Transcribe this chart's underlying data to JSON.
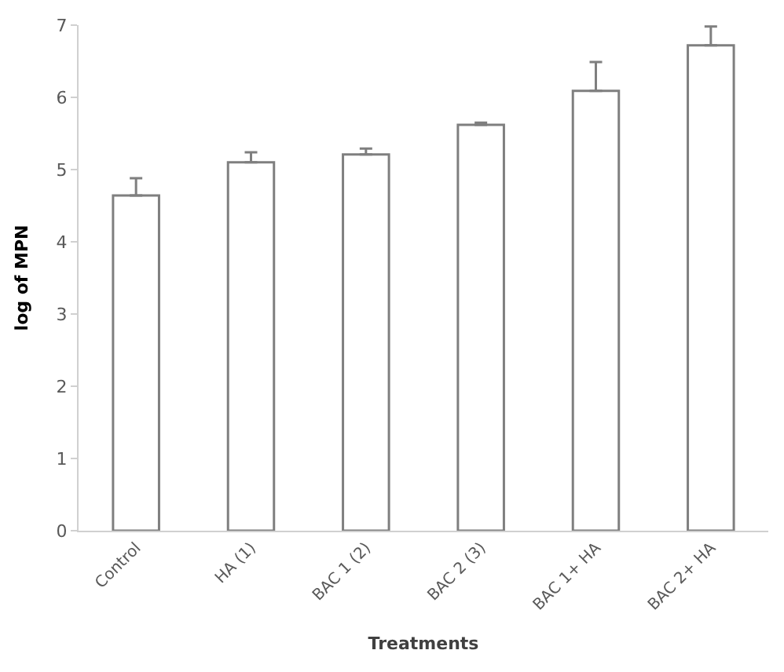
{
  "chart_data": {
    "type": "bar",
    "xlabel": "Treatments",
    "ylabel": "log of MPN",
    "categories": [
      "Control",
      "HA (1)",
      "BAC 1 (2)",
      "BAC 2 (3)",
      "BAC 1+ HA",
      "BAC 2+ HA"
    ],
    "values": [
      4.64,
      5.1,
      5.21,
      5.62,
      6.09,
      6.72
    ],
    "errors": [
      [
        4.64,
        4.88
      ],
      [
        5.1,
        5.24
      ],
      [
        5.21,
        5.29
      ],
      [
        5.62,
        5.65
      ],
      [
        6.09,
        6.49
      ],
      [
        6.72,
        6.98
      ]
    ],
    "color": "#ffffff",
    "ylim": [
      0,
      7
    ],
    "yticks": [
      0,
      1,
      2,
      3,
      4,
      5,
      6,
      7
    ],
    "grid": false,
    "legend": false
  }
}
